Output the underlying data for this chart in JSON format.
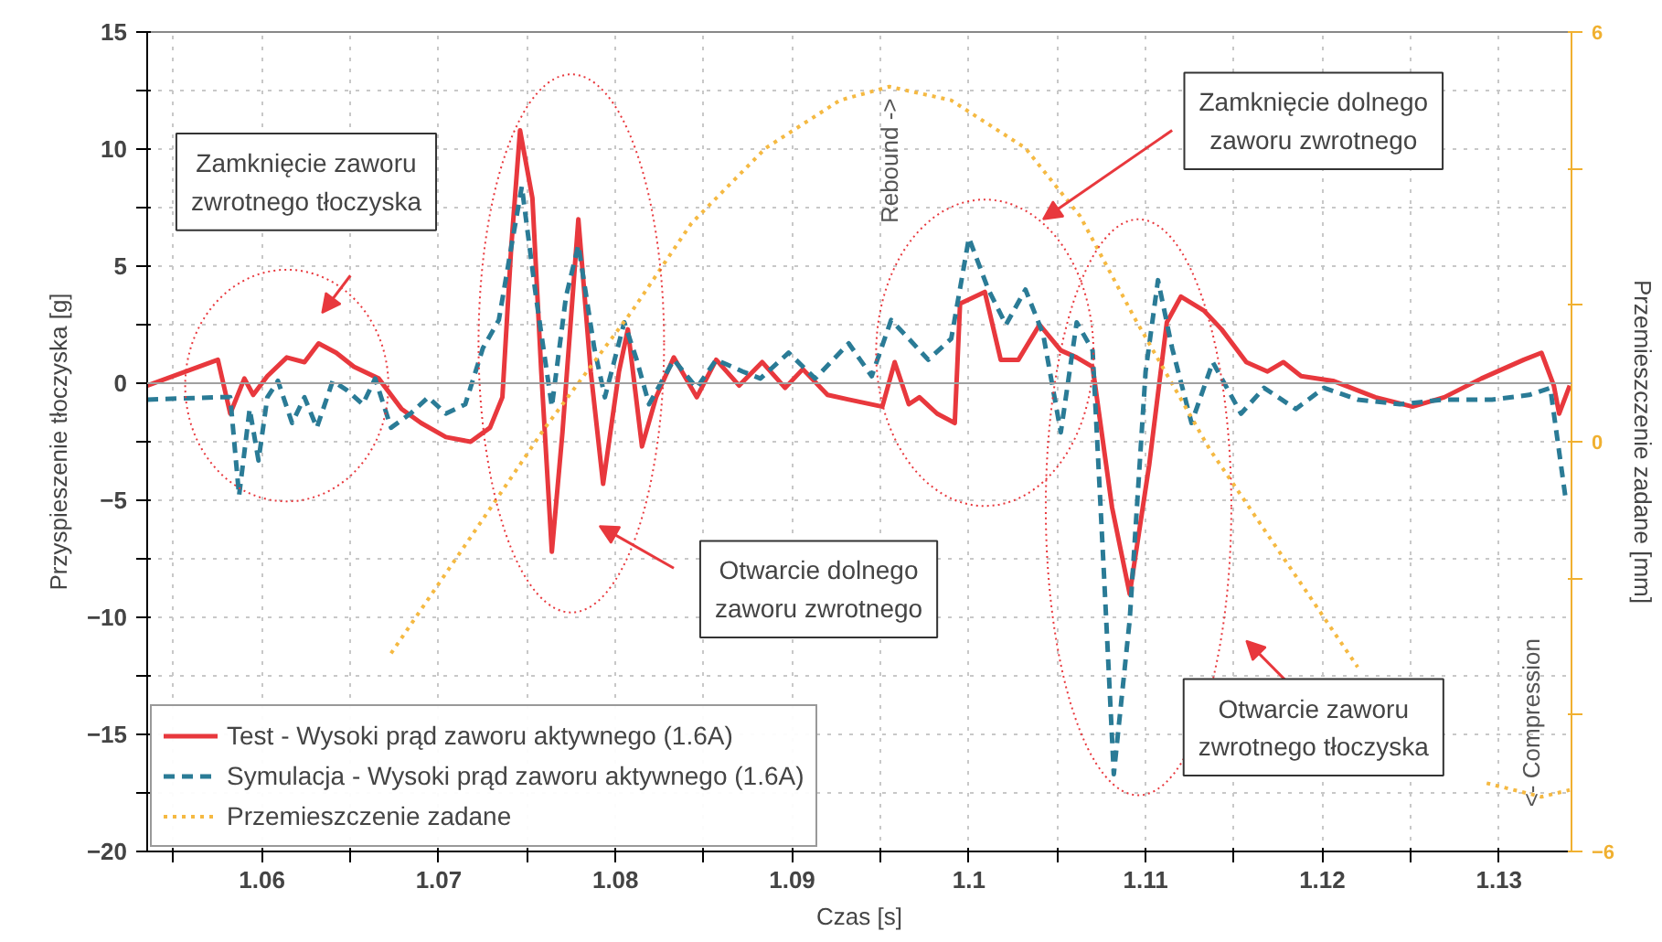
{
  "chart_data": {
    "type": "line",
    "xlabel": "Czas [s]",
    "ylabel": "Przyspieszenie tłoczyska [g]",
    "y2label": "Przemieszczenie zadane [mm]",
    "xlim": [
      1.0535,
      1.1341
    ],
    "ylim": [
      -20,
      15
    ],
    "y2lim": [
      -6,
      6
    ],
    "xticks": [
      {
        "value": 1.055,
        "label": null
      },
      1.06,
      {
        "value": 1.065,
        "label": null
      },
      1.07,
      {
        "value": 1.075,
        "label": null
      },
      1.08,
      {
        "value": 1.085,
        "label": null
      },
      1.09,
      {
        "value": 1.095,
        "label": null
      },
      1.1,
      {
        "value": 1.105,
        "label": null
      },
      1.11,
      {
        "value": 1.115,
        "label": null
      },
      1.12,
      {
        "value": 1.125,
        "label": null
      },
      1.13
    ],
    "yticks": [
      -20,
      {
        "value": -17.5,
        "label": null
      },
      -15,
      {
        "value": -12.5,
        "label": null
      },
      -10,
      {
        "value": -7.5,
        "label": null
      },
      -5,
      {
        "value": -2.5,
        "label": null
      },
      0,
      {
        "value": 2.5,
        "label": null
      },
      5,
      {
        "value": 7.5,
        "label": null
      },
      10,
      {
        "value": 12.5,
        "label": null
      },
      15
    ],
    "y2ticks": [
      -6,
      {
        "value": -4,
        "label": null
      },
      {
        "value": -2,
        "label": null
      },
      0,
      {
        "value": 2,
        "label": null
      },
      {
        "value": 4,
        "label": null
      },
      6
    ],
    "grid": true,
    "legend": "bottom left",
    "series": [
      {
        "name": "Test - Wysoki prąd zaworu aktywnego (1.6A)",
        "color": "#e8383d",
        "line_style": "solid",
        "x": [
          1.0535,
          1.0564,
          1.0575,
          1.0582,
          1.059,
          1.0595,
          1.0603,
          1.0614,
          1.0624,
          1.0632,
          1.0642,
          1.0652,
          1.0666,
          1.0679,
          1.069,
          1.0704,
          1.0718,
          1.0729,
          1.0736,
          1.0741,
          1.0746,
          1.0753,
          1.0758,
          1.0764,
          1.077,
          1.0779,
          1.0786,
          1.0793,
          1.0802,
          1.0807,
          1.0815,
          1.0823,
          1.0833,
          1.0846,
          1.0857,
          1.087,
          1.0883,
          1.0896,
          1.0906,
          1.092,
          1.0932,
          1.0951,
          1.0958,
          1.0966,
          1.0972,
          1.0982,
          1.0992,
          1.0995,
          1.1009,
          1.1018,
          1.1028,
          1.104,
          1.1052,
          1.1061,
          1.107,
          1.1081,
          1.1091,
          1.1102,
          1.1112,
          1.112,
          1.1133,
          1.1143,
          1.1157,
          1.1169,
          1.1178,
          1.1188,
          1.1206,
          1.123,
          1.1251,
          1.1269,
          1.129,
          1.1314,
          1.1324,
          1.1331,
          1.1334,
          1.134
        ],
        "values": [
          -0.1,
          0.7,
          1.0,
          -1.3,
          0.2,
          -0.5,
          0.3,
          1.1,
          0.9,
          1.7,
          1.3,
          0.7,
          0.2,
          -1.1,
          -1.7,
          -2.3,
          -2.5,
          -1.9,
          -0.6,
          5.8,
          10.8,
          7.9,
          0.5,
          -7.2,
          -2.1,
          7.0,
          0.5,
          -4.3,
          0.5,
          2.3,
          -2.7,
          -0.6,
          1.1,
          -0.6,
          1.0,
          -0.1,
          0.9,
          -0.2,
          0.6,
          -0.5,
          -0.7,
          -1.0,
          0.9,
          -0.9,
          -0.6,
          -1.3,
          -1.7,
          3.4,
          3.9,
          1.0,
          1.0,
          2.5,
          1.4,
          1.1,
          0.7,
          -5.3,
          -9.0,
          -3.5,
          2.6,
          3.7,
          3.1,
          2.3,
          0.9,
          0.5,
          0.9,
          0.3,
          0.1,
          -0.6,
          -1.0,
          -0.6,
          0.2,
          1.0,
          1.3,
          -0.1,
          -1.3,
          -0.1
        ]
      },
      {
        "name": "Symulacja - Wysoki prąd zaworu aktywnego (1.6A)",
        "color": "#2a7b96",
        "line_style": "dashed",
        "x": [
          1.0535,
          1.0575,
          1.0582,
          1.0587,
          1.0593,
          1.0598,
          1.0603,
          1.0609,
          1.0617,
          1.0624,
          1.0631,
          1.064,
          1.0648,
          1.0657,
          1.0664,
          1.0673,
          1.0684,
          1.0694,
          1.0704,
          1.0715,
          1.0725,
          1.0734,
          1.0741,
          1.0747,
          1.0755,
          1.0764,
          1.0772,
          1.0779,
          1.0788,
          1.0794,
          1.0805,
          1.0812,
          1.0819,
          1.0833,
          1.0846,
          1.0857,
          1.0872,
          1.0882,
          1.0898,
          1.0913,
          1.0932,
          1.0945,
          1.0956,
          1.0966,
          1.0977,
          1.099,
          1.1,
          1.1011,
          1.1021,
          1.1032,
          1.1042,
          1.1052,
          1.1061,
          1.107,
          1.1076,
          1.1082,
          1.1091,
          1.11,
          1.1107,
          1.1115,
          1.1126,
          1.1138,
          1.1154,
          1.1167,
          1.1185,
          1.1201,
          1.122,
          1.1244,
          1.1269,
          1.1296,
          1.1317,
          1.1329,
          1.1338
        ],
        "values": [
          -0.7,
          -0.6,
          -0.6,
          -4.8,
          -1.1,
          -3.3,
          -0.6,
          0.1,
          -1.7,
          -0.6,
          -1.9,
          0.1,
          -0.3,
          -0.9,
          0.2,
          -1.9,
          -1.3,
          -0.6,
          -1.3,
          -0.9,
          1.5,
          2.7,
          5.8,
          8.4,
          3.7,
          -1.0,
          3.7,
          5.9,
          1.5,
          -0.6,
          2.6,
          1.0,
          -0.9,
          1.0,
          -0.2,
          1.0,
          0.5,
          0.2,
          1.3,
          0.2,
          1.7,
          0.3,
          2.7,
          1.9,
          1.0,
          1.9,
          6.2,
          4.0,
          2.5,
          4.0,
          2.1,
          -2.1,
          2.6,
          1.4,
          -7.5,
          -16.7,
          -10.1,
          0.5,
          4.4,
          1.5,
          -1.7,
          0.9,
          -1.3,
          -0.2,
          -1.1,
          -0.2,
          -0.7,
          -0.9,
          -0.7,
          -0.7,
          -0.5,
          -0.2,
          -5.1
        ]
      },
      {
        "name": "Przemieszczenie zadane",
        "color": "#f5b942",
        "line_style": "dotted",
        "axis": "y2",
        "x": [
          1.0673,
          1.0718,
          1.076,
          1.0809,
          1.0843,
          1.0885,
          1.0927,
          1.0955,
          1.099,
          1.1032,
          1.1063,
          1.1094,
          1.1136,
          1.1178,
          1.122,
          1.1261,
          1.1293,
          1.1324,
          1.134
        ],
        "values": [
          -3.1,
          -1.4,
          0.2,
          1.9,
          3.2,
          4.3,
          5.0,
          5.2,
          5.0,
          4.3,
          3.3,
          1.8,
          -0.1,
          -1.7,
          -3.3,
          null,
          -5.0,
          -5.2,
          -5.1
        ]
      }
    ],
    "ref_lines": [
      {
        "axis": "y",
        "value": 0,
        "color": "#a0a0a0"
      }
    ],
    "annotations": [
      "Zamknięcie zaworu\nzwrotnego tłoczyska",
      "Otwarcie dolnego\nzaworu zwrotnego",
      "Zamknięcie dolnego\nzaworu zwrotnego",
      "Otwarcie zaworu\nzwrotnego tłoczyska",
      "Rebound ->",
      "<- Compression"
    ]
  }
}
